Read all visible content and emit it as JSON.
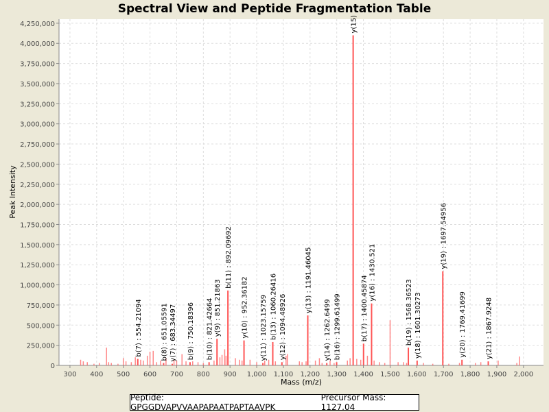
{
  "chart_data": {
    "type": "bar",
    "title": "Spectral View and Peptide Fragmentation Table",
    "xlabel": "Mass (m/z)",
    "ylabel": "Peak Intensity",
    "xlim": [
      259,
      2075
    ],
    "ylim": [
      0,
      4300000
    ],
    "xticks": [
      300,
      400,
      500,
      600,
      700,
      800,
      900,
      1000,
      1100,
      1200,
      1300,
      1400,
      1500,
      1600,
      1700,
      1800,
      1900,
      2000
    ],
    "xtick_labels": [
      "300",
      "400",
      "500",
      "600",
      "700",
      "800",
      "900",
      "1,000",
      "1,100",
      "1,200",
      "1,300",
      "1,400",
      "1,500",
      "1,600",
      "1,700",
      "1,800",
      "1,900",
      "2,000"
    ],
    "yticks": [
      0,
      250000,
      500000,
      750000,
      1000000,
      1250000,
      1500000,
      1750000,
      2000000,
      2250000,
      2500000,
      2750000,
      3000000,
      3250000,
      3500000,
      3750000,
      4000000,
      4250000
    ],
    "ytick_labels": [
      "0",
      "250,000",
      "500,000",
      "750,000",
      "1,000,000",
      "1,250,000",
      "1,500,000",
      "1,750,000",
      "2,000,000",
      "2,250,000",
      "2,500,000",
      "2,750,000",
      "3,000,000",
      "3,250,000",
      "3,500,000",
      "3,750,000",
      "4,000,000",
      "4,250,000"
    ],
    "grid": true,
    "peak_color": "#ff5555",
    "annotated_peaks": [
      {
        "label": "b(7) : 554.21094",
        "mass": 554.21,
        "intensity": 80000
      },
      {
        "label": "b(8) : 651.05591",
        "mass": 651.06,
        "intensity": 30000
      },
      {
        "label": "y(7) : 683.34497",
        "mass": 683.34,
        "intensity": 20000
      },
      {
        "label": "b(9) : 750.18396",
        "mass": 750.18,
        "intensity": 40000
      },
      {
        "label": "b(10) : 821.42664",
        "mass": 821.43,
        "intensity": 40000
      },
      {
        "label": "y(9) : 851.21863",
        "mass": 851.22,
        "intensity": 330000
      },
      {
        "label": "b(11) : 892.09692",
        "mass": 892.1,
        "intensity": 930000
      },
      {
        "label": "y(10) : 952.36182",
        "mass": 952.36,
        "intensity": 310000
      },
      {
        "label": "y(11) : 1023.15759",
        "mass": 1023.16,
        "intensity": 30000
      },
      {
        "label": "b(13) : 1060.26416",
        "mass": 1060.26,
        "intensity": 290000
      },
      {
        "label": "y(12) : 1094.48926",
        "mass": 1094.49,
        "intensity": 40000
      },
      {
        "label": "y(13) : 1191.46045",
        "mass": 1191.46,
        "intensity": 620000
      },
      {
        "label": "y(14) : 1262.6499",
        "mass": 1262.65,
        "intensity": 30000
      },
      {
        "label": "b(16) : 1299.61499",
        "mass": 1299.61,
        "intensity": 40000
      },
      {
        "label": "y(15)",
        "mass": 1361.5,
        "intensity": 4100000
      },
      {
        "label": "b(17) : 1400.45874",
        "mass": 1400.46,
        "intensity": 270000
      },
      {
        "label": "y(16) : 1430.521",
        "mass": 1430.52,
        "intensity": 770000
      },
      {
        "label": "b(19) : 1568.36523",
        "mass": 1568.37,
        "intensity": 220000
      },
      {
        "label": "y(18) : 1601.30273",
        "mass": 1601.3,
        "intensity": 60000
      },
      {
        "label": "y(19) : 1697.54956",
        "mass": 1697.55,
        "intensity": 1170000
      },
      {
        "label": "y(20) : 1769.41699",
        "mass": 1769.42,
        "intensity": 70000
      },
      {
        "label": "y(21) : 1867.9248",
        "mass": 1867.92,
        "intensity": 50000
      }
    ],
    "other_peaks": [
      [
        340,
        70000
      ],
      [
        350,
        50000
      ],
      [
        365,
        40000
      ],
      [
        390,
        20000
      ],
      [
        410,
        30000
      ],
      [
        437,
        220000
      ],
      [
        445,
        40000
      ],
      [
        455,
        30000
      ],
      [
        480,
        20000
      ],
      [
        500,
        90000
      ],
      [
        510,
        50000
      ],
      [
        530,
        40000
      ],
      [
        545,
        100000
      ],
      [
        565,
        70000
      ],
      [
        575,
        60000
      ],
      [
        590,
        120000
      ],
      [
        600,
        170000
      ],
      [
        612,
        180000
      ],
      [
        625,
        40000
      ],
      [
        640,
        60000
      ],
      [
        660,
        90000
      ],
      [
        690,
        70000
      ],
      [
        700,
        60000
      ],
      [
        720,
        140000
      ],
      [
        735,
        50000
      ],
      [
        760,
        50000
      ],
      [
        780,
        40000
      ],
      [
        800,
        30000
      ],
      [
        840,
        60000
      ],
      [
        862,
        100000
      ],
      [
        870,
        130000
      ],
      [
        880,
        200000
      ],
      [
        885,
        120000
      ],
      [
        920,
        90000
      ],
      [
        935,
        70000
      ],
      [
        945,
        60000
      ],
      [
        975,
        70000
      ],
      [
        1000,
        40000
      ],
      [
        1030,
        60000
      ],
      [
        1045,
        70000
      ],
      [
        1070,
        50000
      ],
      [
        1110,
        120000
      ],
      [
        1115,
        140000
      ],
      [
        1160,
        50000
      ],
      [
        1170,
        40000
      ],
      [
        1185,
        50000
      ],
      [
        1220,
        60000
      ],
      [
        1235,
        90000
      ],
      [
        1245,
        30000
      ],
      [
        1275,
        60000
      ],
      [
        1290,
        30000
      ],
      [
        1340,
        60000
      ],
      [
        1350,
        90000
      ],
      [
        1375,
        80000
      ],
      [
        1390,
        70000
      ],
      [
        1415,
        120000
      ],
      [
        1440,
        60000
      ],
      [
        1460,
        40000
      ],
      [
        1480,
        30000
      ],
      [
        1500,
        560000
      ],
      [
        1530,
        40000
      ],
      [
        1550,
        40000
      ],
      [
        1562,
        30000
      ],
      [
        1625,
        30000
      ],
      [
        1660,
        20000
      ],
      [
        1720,
        20000
      ],
      [
        1760,
        30000
      ],
      [
        1820,
        30000
      ],
      [
        1840,
        40000
      ],
      [
        1905,
        60000
      ],
      [
        1975,
        30000
      ],
      [
        1985,
        110000
      ]
    ]
  },
  "legend": {
    "peptide": "Peptide: GPGGDVAPVVAAPAPAATPAPTAAVPK",
    "precursor": "Precursor Mass: 1127.04"
  }
}
